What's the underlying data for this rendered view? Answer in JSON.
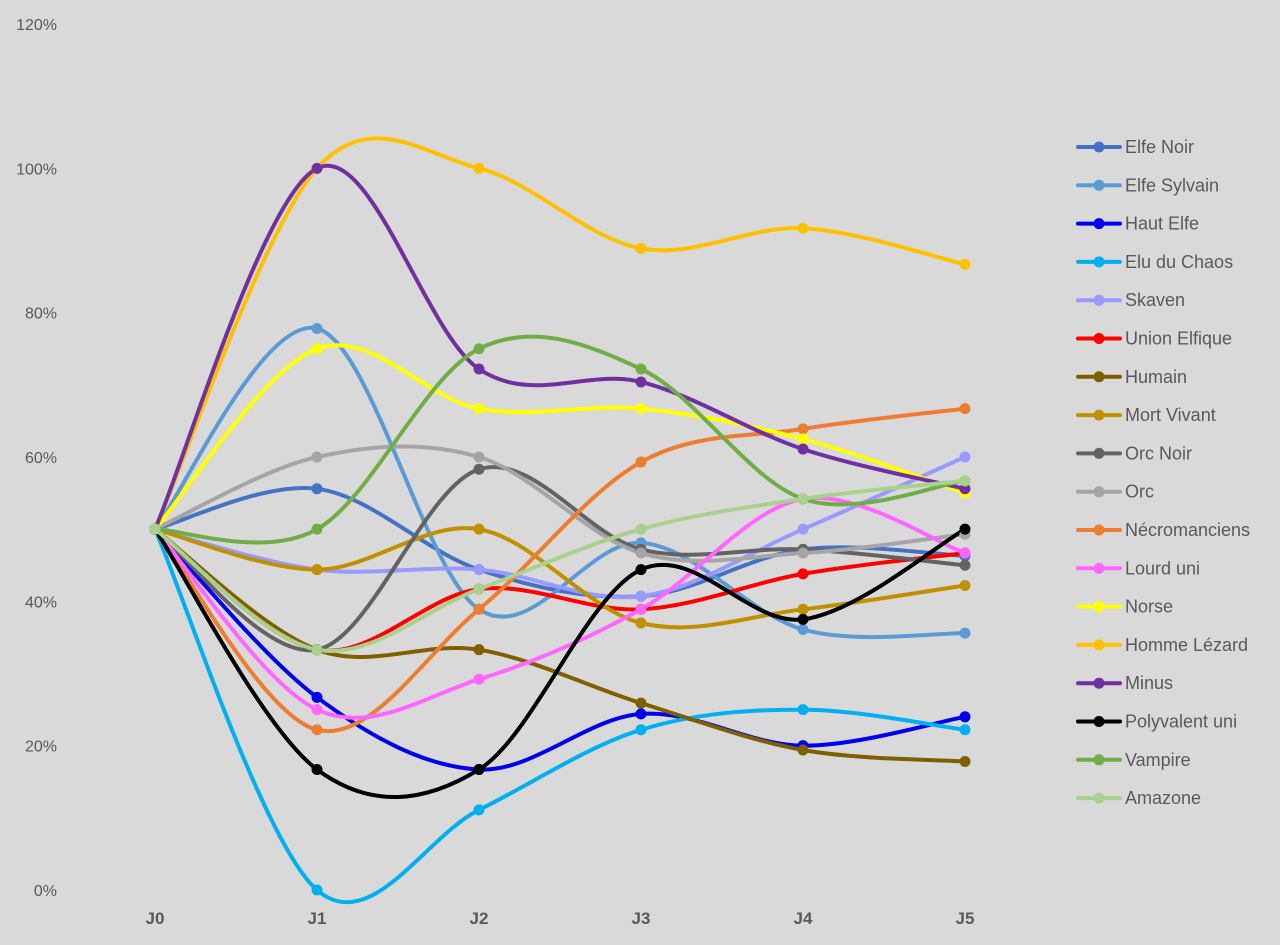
{
  "chart_data": {
    "type": "line",
    "title": "",
    "xlabel": "",
    "ylabel": "",
    "x": [
      "J0",
      "J1",
      "J2",
      "J3",
      "J4",
      "J5"
    ],
    "ylim": [
      0,
      120
    ],
    "y_ticks": [
      0,
      20,
      40,
      60,
      80,
      100,
      120
    ],
    "y_tick_labels": [
      "0%",
      "20%",
      "40%",
      "60%",
      "80%",
      "100%",
      "120%"
    ],
    "grid": false,
    "smooth": true,
    "legend": "right",
    "series": [
      {
        "name": "Elfe Noir",
        "color": "#4472c4",
        "values": [
          50,
          55.6,
          44.4,
          40.7,
          47.2,
          46.3
        ]
      },
      {
        "name": "Elfe Sylvain",
        "color": "#5b9bd5",
        "values": [
          50,
          77.8,
          38.9,
          48.1,
          36.1,
          35.6
        ]
      },
      {
        "name": "Haut Elfe",
        "color": "#0000ee",
        "values": [
          50,
          26.7,
          16.7,
          24.4,
          20.0,
          24.0
        ]
      },
      {
        "name": "Elu du Chaos",
        "color": "#00b0f0",
        "values": [
          50,
          0,
          11.1,
          22.2,
          25.0,
          22.2
        ]
      },
      {
        "name": "Skaven",
        "color": "#9999ff",
        "values": [
          50,
          44.4,
          44.4,
          40.7,
          50.0,
          60.0
        ]
      },
      {
        "name": "Union Elfique",
        "color": "#ff0000",
        "values": [
          50,
          33.3,
          41.7,
          38.9,
          43.8,
          46.7
        ]
      },
      {
        "name": "Humain",
        "color": "#7f6000",
        "values": [
          50,
          33.3,
          33.3,
          25.9,
          19.4,
          17.8
        ]
      },
      {
        "name": "Mort Vivant",
        "color": "#bf9000",
        "values": [
          50,
          44.4,
          50.0,
          37.0,
          38.9,
          42.2
        ]
      },
      {
        "name": "Orc Noir",
        "color": "#636363",
        "values": [
          50,
          33.3,
          58.3,
          47.2,
          47.2,
          45.0
        ]
      },
      {
        "name": "Orc",
        "color": "#a5a5a5",
        "values": [
          50,
          60.0,
          60.0,
          46.7,
          46.7,
          49.3
        ]
      },
      {
        "name": "Nécromanciens",
        "color": "#ed7d31",
        "values": [
          50,
          22.2,
          38.9,
          59.3,
          63.9,
          66.7
        ]
      },
      {
        "name": "Lourd uni",
        "color": "#ff66ff",
        "values": [
          50,
          25.0,
          29.2,
          38.9,
          54.2,
          46.7
        ]
      },
      {
        "name": "Norse",
        "color": "#ffff00",
        "values": [
          50,
          75.0,
          66.7,
          66.7,
          62.5,
          55.0
        ]
      },
      {
        "name": "Homme Lézard",
        "color": "#ffc000",
        "values": [
          50,
          100,
          100,
          88.9,
          91.7,
          86.7
        ]
      },
      {
        "name": "Minus",
        "color": "#7030a0",
        "values": [
          50,
          100,
          72.2,
          70.4,
          61.1,
          55.6
        ]
      },
      {
        "name": "Polyvalent uni",
        "color": "#000000",
        "values": [
          50,
          16.7,
          16.7,
          44.4,
          37.5,
          50.0
        ]
      },
      {
        "name": "Vampire",
        "color": "#70ad47",
        "values": [
          50,
          50.0,
          75.0,
          72.2,
          54.2,
          56.7
        ]
      },
      {
        "name": "Amazone",
        "color": "#a9d18e",
        "values": [
          50,
          33.3,
          41.7,
          50.0,
          54.2,
          56.7
        ]
      }
    ]
  }
}
